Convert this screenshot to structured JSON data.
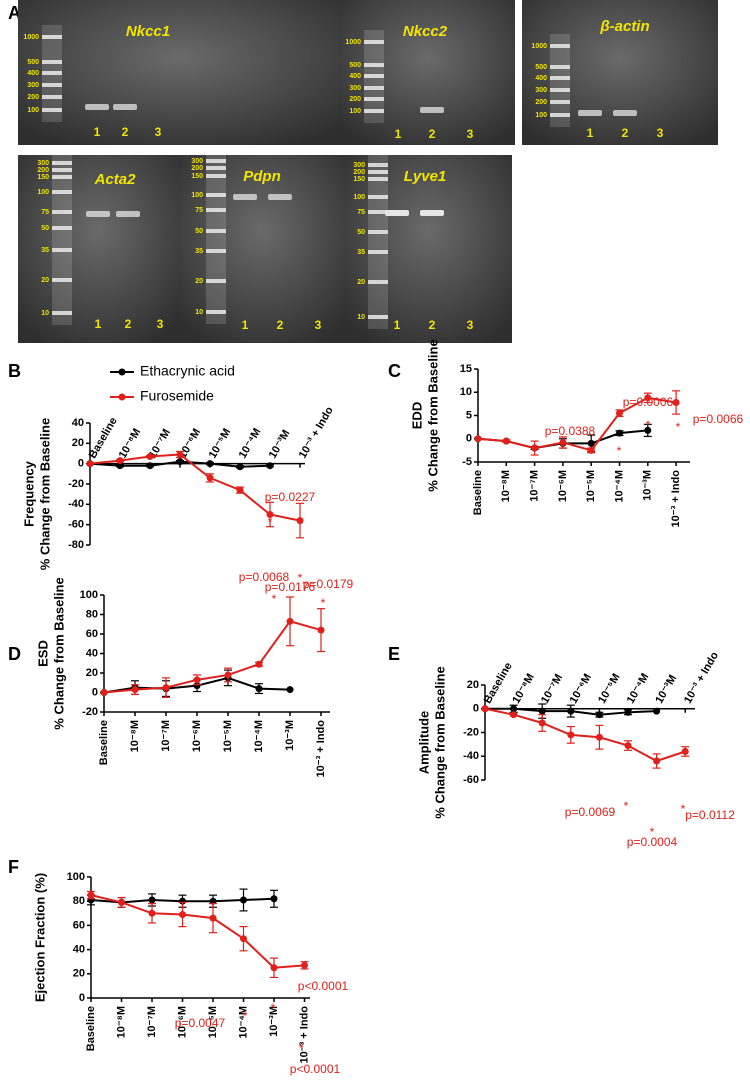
{
  "panel_labels": [
    "A",
    "B",
    "C",
    "D",
    "E",
    "F"
  ],
  "gels": [
    {
      "gene": "Nkcc1",
      "ladder": [
        "1000",
        "500",
        "400",
        "300",
        "200",
        "100"
      ],
      "lanes": [
        "1",
        "2",
        "3"
      ]
    },
    {
      "gene": "Nkcc2",
      "ladder": [
        "1000",
        "500",
        "400",
        "300",
        "200",
        "100"
      ],
      "lanes": [
        "1",
        "2",
        "3"
      ]
    },
    {
      "gene": "β-actin",
      "ladder": [
        "1000",
        "500",
        "400",
        "300",
        "200",
        "100"
      ],
      "lanes": [
        "1",
        "2",
        "3"
      ]
    },
    {
      "gene": "Acta2",
      "ladder": [
        "300",
        "200",
        "150",
        "100",
        "75",
        "50",
        "35",
        "20",
        "10"
      ],
      "lanes": [
        "1",
        "2",
        "3"
      ]
    },
    {
      "gene": "Pdpn",
      "ladder": [
        "300",
        "200",
        "150",
        "100",
        "75",
        "50",
        "35",
        "20",
        "10"
      ],
      "lanes": [
        "1",
        "2",
        "3"
      ]
    },
    {
      "gene": "Lyve1",
      "ladder": [
        "300",
        "200",
        "150",
        "100",
        "75",
        "50",
        "35",
        "20",
        "10"
      ],
      "lanes": [
        "1",
        "2",
        "3"
      ]
    }
  ],
  "chart_data": [
    {
      "type": "line",
      "title": "Frequency",
      "ylabel": "% Change from Baseline",
      "categories": [
        "Baseline",
        "10⁻⁸M",
        "10⁻⁷M",
        "10⁻⁶M",
        "10⁻⁵M",
        "10⁻⁴M",
        "10⁻³M",
        "10⁻³ + Indo"
      ],
      "ylim": [
        -80,
        40
      ],
      "yticks": [
        40,
        20,
        0,
        -20,
        -40,
        -60,
        -80
      ],
      "series": [
        {
          "name": "Ethacrynic acid",
          "color": "#000000",
          "values": [
            0,
            -2,
            -2,
            2,
            0,
            -3,
            -2,
            null
          ],
          "errors": [
            0,
            1,
            1,
            1,
            1,
            1,
            1,
            null
          ]
        },
        {
          "name": "Furosemide",
          "color": "#e0201b",
          "values": [
            0,
            3,
            7,
            9,
            -14,
            -26,
            -50,
            -56
          ],
          "errors": [
            0,
            1,
            1,
            3,
            4,
            3,
            12,
            17
          ]
        }
      ],
      "annotations": [
        "p=0.0227",
        "*",
        "*",
        "p=0.0176"
      ]
    },
    {
      "type": "line",
      "title": "EDD",
      "ylabel": "% Change from Baseline",
      "categories": [
        "Baseline",
        "10⁻⁸M",
        "10⁻⁷M",
        "10⁻⁶M",
        "10⁻⁵M",
        "10⁻⁴M",
        "10⁻³M",
        "10⁻³ + Indo"
      ],
      "ylim": [
        -5,
        15
      ],
      "yticks": [
        -5,
        0,
        5,
        10,
        15
      ],
      "series": [
        {
          "name": "Ethacrynic acid",
          "color": "#000000",
          "values": [
            0,
            -0.5,
            -2,
            -1,
            -1,
            1.2,
            1.8,
            null
          ],
          "errors": [
            0,
            0.2,
            0.3,
            1,
            1.8,
            0.5,
            1.3,
            null
          ]
        },
        {
          "name": "Furosemide",
          "color": "#e0201b",
          "values": [
            0,
            -0.5,
            -2,
            -0.8,
            -2.5,
            5.5,
            8.8,
            7.8
          ],
          "errors": [
            0,
            0.2,
            1.5,
            1.2,
            0.5,
            0.7,
            1,
            2.5
          ]
        }
      ],
      "annotations": [
        "p=0.0388",
        "*",
        "p=0.0006",
        "*",
        "*",
        "p=0.0066"
      ]
    },
    {
      "type": "line",
      "title": "ESD",
      "ylabel": "% Change from Baseline",
      "categories": [
        "Baseline",
        "10⁻⁸M",
        "10⁻⁷M",
        "10⁻⁶M",
        "10⁻⁵M",
        "10⁻⁴M",
        "10⁻³M",
        "10⁻³ + Indo"
      ],
      "ylim": [
        -20,
        100
      ],
      "yticks": [
        -20,
        0,
        20,
        40,
        60,
        80,
        100
      ],
      "series": [
        {
          "name": "Ethacrynic acid",
          "color": "#000000",
          "values": [
            0,
            5,
            4,
            7,
            15,
            4,
            3,
            null
          ],
          "errors": [
            0,
            7,
            8,
            6,
            8,
            5,
            0,
            null
          ]
        },
        {
          "name": "Furosemide",
          "color": "#e0201b",
          "values": [
            0,
            3,
            5,
            13,
            18,
            29,
            73,
            64
          ],
          "errors": [
            0,
            5,
            10,
            5,
            7,
            2,
            25,
            22
          ]
        }
      ],
      "annotations": [
        "p=0.0068",
        "*",
        "p=0.0179",
        "*"
      ]
    },
    {
      "type": "line",
      "title": "Amplitude",
      "ylabel": "% Change from Baseline",
      "categories": [
        "Baseline",
        "10⁻⁸M",
        "10⁻⁷M",
        "10⁻⁶M",
        "10⁻⁵M",
        "10⁻⁴M",
        "10⁻³M",
        "10⁻³ + Indo"
      ],
      "ylim": [
        -60,
        20
      ],
      "yticks": [
        20,
        0,
        -20,
        -40,
        -60
      ],
      "series": [
        {
          "name": "Ethacrynic acid",
          "color": "#000000",
          "values": [
            0,
            0,
            -2,
            -2,
            -5,
            -3,
            -2,
            null
          ],
          "errors": [
            0,
            3,
            6,
            5,
            2,
            2,
            0,
            null
          ]
        },
        {
          "name": "Furosemide",
          "color": "#e0201b",
          "values": [
            0,
            -5,
            -12,
            -22,
            -24,
            -31,
            -44,
            -36
          ],
          "errors": [
            0,
            1,
            7,
            7,
            10,
            4,
            6,
            4
          ]
        }
      ],
      "annotations": [
        "*",
        "p=0.0069",
        "*",
        "p=0.0004",
        "*",
        "p=0.0112"
      ]
    },
    {
      "type": "line",
      "ylabel": "Ejection Fraction (%)",
      "categories": [
        "Baseline",
        "10⁻⁸M",
        "10⁻⁷M",
        "10⁻⁶M",
        "10⁻⁵M",
        "10⁻⁴M",
        "10⁻³M",
        "10⁻³ + Indo"
      ],
      "ylim": [
        0,
        100
      ],
      "yticks": [
        0,
        20,
        40,
        60,
        80,
        100
      ],
      "series": [
        {
          "name": "Ethacrynic acid",
          "color": "#000000",
          "values": [
            81,
            79,
            81,
            80,
            80,
            81,
            82,
            null
          ],
          "errors": [
            4,
            4,
            5,
            5,
            5,
            9,
            7,
            null
          ]
        },
        {
          "name": "Furosemide",
          "color": "#e0201b",
          "values": [
            85,
            79,
            70,
            69,
            66,
            49,
            25,
            27
          ],
          "errors": [
            3,
            4,
            8,
            10,
            12,
            10,
            8,
            3
          ]
        }
      ],
      "annotations": [
        "p<0.0001",
        "*",
        "*",
        "p=0.0047",
        "*",
        "p<0.0001"
      ]
    }
  ]
}
